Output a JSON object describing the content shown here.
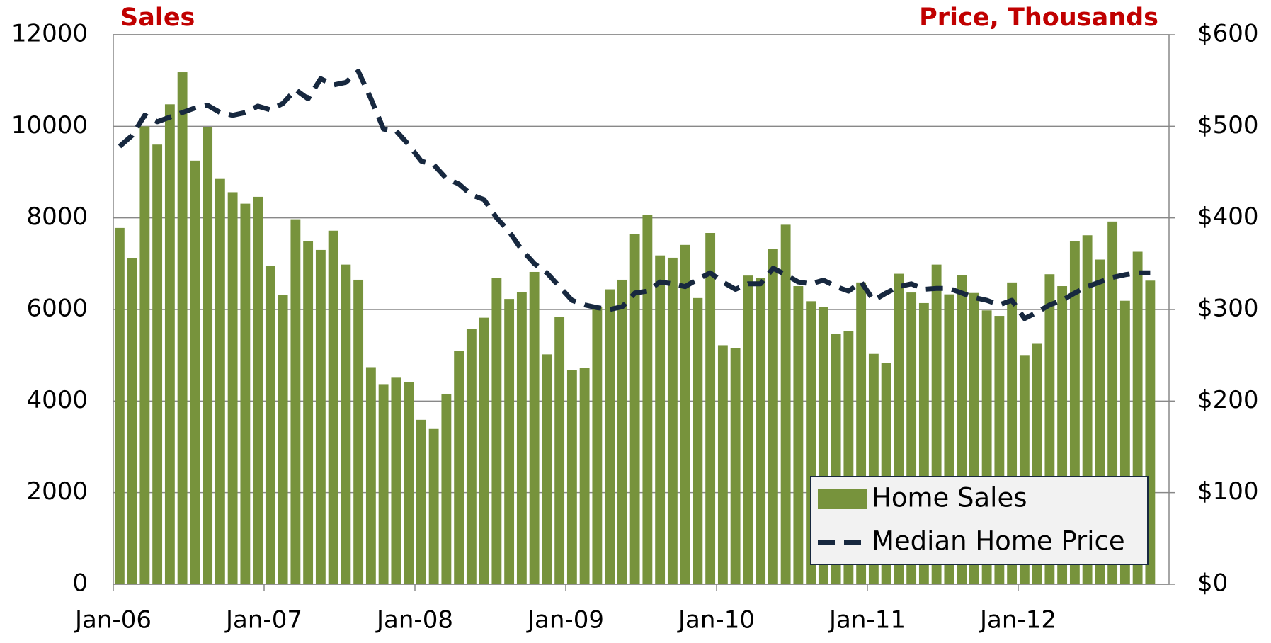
{
  "chart_data": {
    "type": "bar-line",
    "ylabel": "Sales",
    "y2label": "Price, Thousands",
    "categories": [
      "Jan-06",
      null,
      null,
      null,
      null,
      null,
      null,
      null,
      null,
      null,
      null,
      null,
      "Jan-07",
      null,
      null,
      null,
      null,
      null,
      null,
      null,
      null,
      null,
      null,
      null,
      "Jan-08",
      null,
      null,
      null,
      null,
      null,
      null,
      null,
      null,
      null,
      null,
      null,
      "Jan-09",
      null,
      null,
      null,
      null,
      null,
      null,
      null,
      null,
      null,
      null,
      null,
      "Jan-10",
      null,
      null,
      null,
      null,
      null,
      null,
      null,
      null,
      null,
      null,
      null,
      "Jan-11",
      null,
      null,
      null,
      null,
      null,
      null,
      null,
      null,
      null,
      null,
      null,
      "Jan-12",
      null,
      null,
      null,
      null,
      null,
      null,
      null,
      null,
      null,
      null,
      null
    ],
    "series": [
      {
        "name": "Home Sales",
        "type": "bar",
        "color": "#77933c",
        "values": [
          7780,
          7120,
          10000,
          9600,
          10480,
          11180,
          9250,
          9980,
          8850,
          8560,
          8310,
          8460,
          6950,
          6320,
          7970,
          7490,
          7300,
          7720,
          6980,
          6650,
          4740,
          4370,
          4510,
          4420,
          3590,
          3390,
          4160,
          5100,
          5570,
          5820,
          6690,
          6230,
          6380,
          6820,
          5020,
          5840,
          4670,
          4730,
          6060,
          6440,
          6650,
          7640,
          8070,
          7180,
          7130,
          7410,
          6250,
          7670,
          5220,
          5160,
          6740,
          6690,
          7320,
          7850,
          6510,
          6180,
          6060,
          5470,
          5530,
          6590,
          5030,
          4840,
          6780,
          6370,
          6140,
          6980,
          6330,
          6750,
          6360,
          5980,
          5860,
          6590,
          4990,
          5250,
          6770,
          6510,
          7500,
          7620,
          7090,
          7920,
          6190,
          7260,
          6630,
          null
        ]
      },
      {
        "name": "Median Home Price",
        "type": "line",
        "axis": "y2",
        "color": "#17283f",
        "values": [
          478,
          490,
          512,
          505,
          510,
          515,
          520,
          523,
          515,
          512,
          515,
          522,
          518,
          525,
          540,
          530,
          552,
          545,
          548,
          560,
          530,
          497,
          495,
          480,
          462,
          458,
          443,
          437,
          425,
          420,
          400,
          385,
          365,
          350,
          340,
          325,
          310,
          305,
          302,
          300,
          303,
          318,
          320,
          330,
          328,
          325,
          333,
          340,
          330,
          322,
          328,
          328,
          345,
          338,
          330,
          328,
          332,
          325,
          320,
          330,
          310,
          318,
          325,
          328,
          322,
          323,
          323,
          318,
          313,
          310,
          305,
          310,
          290,
          297,
          305,
          310,
          318,
          325,
          330,
          335,
          338,
          340,
          340,
          null
        ]
      }
    ],
    "ylim": [
      0,
      12000
    ],
    "yticks": [
      0,
      2000,
      4000,
      6000,
      8000,
      10000,
      12000
    ],
    "y2lim": [
      0,
      600
    ],
    "y2ticks": [
      {
        "value": 0,
        "label": "$0"
      },
      {
        "value": 100,
        "label": "$100"
      },
      {
        "value": 200,
        "label": "$200"
      },
      {
        "value": 300,
        "label": "$300"
      },
      {
        "value": 400,
        "label": "$400"
      },
      {
        "value": 500,
        "label": "$500"
      },
      {
        "value": 600,
        "label": "$600"
      }
    ],
    "grid": true,
    "legend": "lower right"
  }
}
